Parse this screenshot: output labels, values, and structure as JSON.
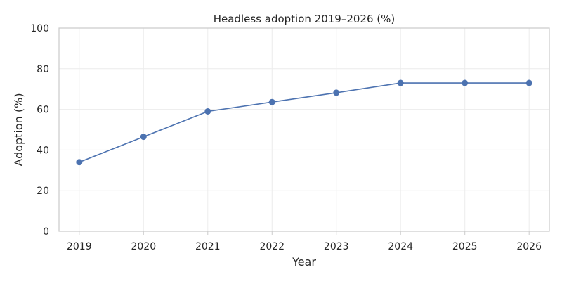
{
  "chart_data": {
    "type": "line",
    "title": "Headless adoption 2019–2026 (%)",
    "xlabel": "Year",
    "ylabel": "Adoption (%)",
    "x": [
      2019,
      2020,
      2021,
      2022,
      2023,
      2024,
      2025,
      2026
    ],
    "series": [
      {
        "values": [
          34.0,
          46.5,
          59.0,
          63.6,
          68.2,
          73.0,
          73.0,
          73.0
        ],
        "color": "#4c72b0",
        "marker": "circle"
      }
    ],
    "ylim": [
      0,
      100
    ],
    "yticks": [
      0,
      20,
      40,
      60,
      80,
      100
    ],
    "xticks": [
      "2019",
      "2020",
      "2021",
      "2022",
      "2023",
      "2024",
      "2025",
      "2026"
    ],
    "grid": true,
    "legend": "none"
  }
}
